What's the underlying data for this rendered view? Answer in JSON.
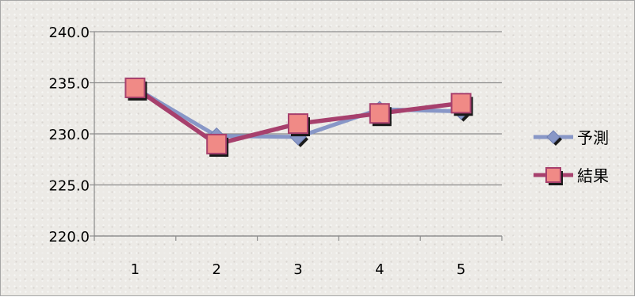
{
  "chart_data": {
    "type": "line",
    "categories": [
      "1",
      "2",
      "3",
      "4",
      "5"
    ],
    "series": [
      {
        "name": "予測",
        "values": [
          234.5,
          229.8,
          229.7,
          232.4,
          232.2
        ],
        "color": "#8897c7",
        "marker": "diamond"
      },
      {
        "name": "結果",
        "values": [
          234.5,
          229.0,
          231.0,
          232.0,
          233.0
        ],
        "color": "#a7406d",
        "marker_fill": "#f08a86",
        "marker": "square"
      }
    ],
    "ylim": [
      220.0,
      240.0
    ],
    "ytick_labels": [
      "220.0",
      "225.0",
      "230.0",
      "235.0",
      "240.0"
    ],
    "xlabel": "",
    "ylabel": "",
    "title": "",
    "grid": "horizontal",
    "legend_position": "right"
  }
}
